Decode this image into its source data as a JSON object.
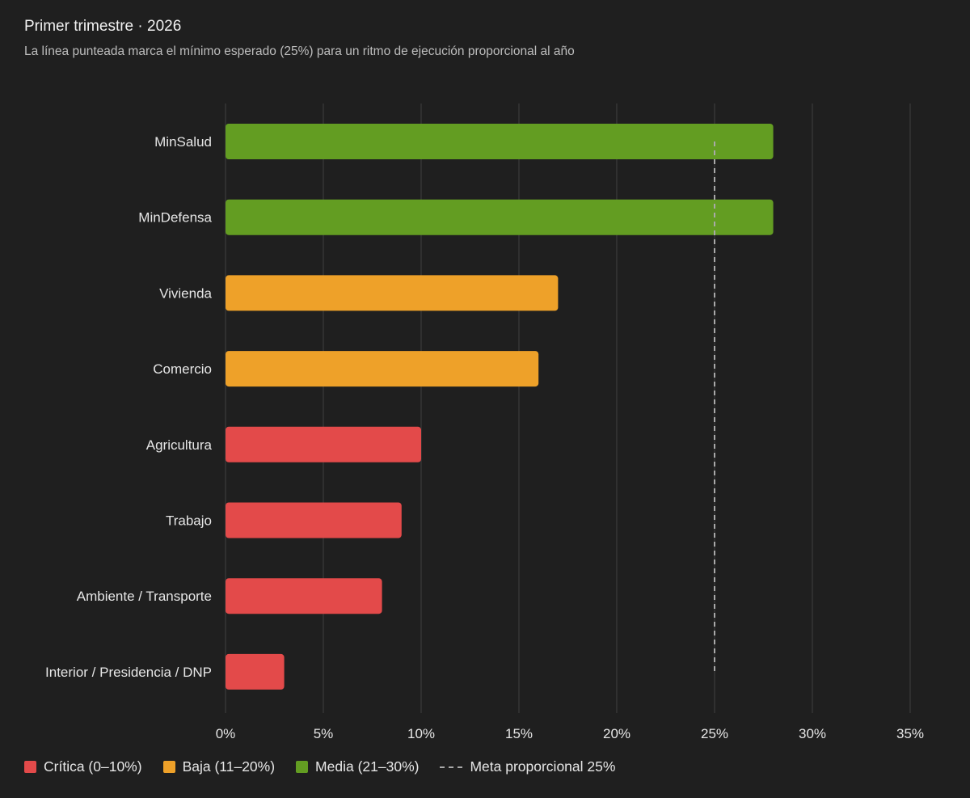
{
  "title": "Primer trimestre · 2026",
  "subtitle": "La línea punteada marca el mínimo esperado (25%) para un ritmo de ejecución proporcional al año",
  "legend": {
    "critica": "Crítica (0–10%)",
    "baja": "Baja (11–20%)",
    "media": "Media (21–30%)",
    "meta": "Meta proporcional 25%"
  },
  "colors": {
    "critica": "#e34a4a",
    "baja": "#eea129",
    "media": "#639d22",
    "background": "#1f1f1f",
    "gridline": "#3b3b3b",
    "reference_line": "#a9a9a9",
    "text": "#e6e6e6"
  },
  "chart_data": {
    "type": "bar",
    "orientation": "horizontal",
    "title": "Primer trimestre · 2026",
    "subtitle": "La línea punteada marca el mínimo esperado (25%) para un ritmo de ejecución proporcional al año",
    "categories": [
      "MinSalud",
      "MinDefensa",
      "Vivienda",
      "Comercio",
      "Agricultura",
      "Trabajo",
      "Ambiente / Transporte",
      "Interior / Presidencia / DNP"
    ],
    "values": [
      28,
      28,
      17,
      16,
      10,
      9,
      8,
      3
    ],
    "value_classes": [
      "media",
      "media",
      "baja",
      "baja",
      "critica",
      "critica",
      "critica",
      "critica"
    ],
    "xlim": [
      0,
      35
    ],
    "x_ticks": [
      0,
      5,
      10,
      15,
      20,
      25,
      30,
      35
    ],
    "x_tick_labels": [
      "0%",
      "5%",
      "10%",
      "15%",
      "20%",
      "25%",
      "30%",
      "35%"
    ],
    "xlabel": "",
    "ylabel": "",
    "reference_line": {
      "value": 25,
      "style": "dashed"
    },
    "grid": true,
    "legend_position": "bottom-left"
  }
}
